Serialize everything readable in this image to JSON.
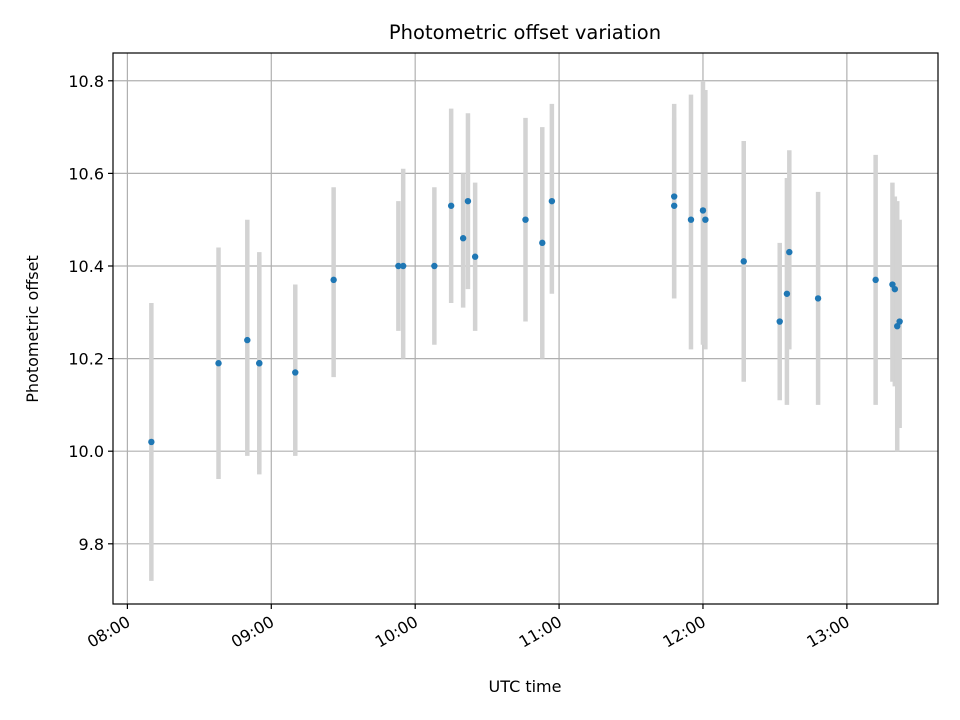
{
  "chart_data": {
    "type": "scatter",
    "title": "Photometric offset variation",
    "xlabel": "UTC time",
    "ylabel": "Photometric offset",
    "x_ticks": [
      "08:00",
      "09:00",
      "10:00",
      "11:00",
      "12:00",
      "13:00"
    ],
    "y_ticks": [
      9.8,
      10.0,
      10.2,
      10.4,
      10.6,
      10.8
    ],
    "xlim": [
      "07:54",
      "13:38"
    ],
    "ylim": [
      9.67,
      10.86
    ],
    "grid": true,
    "colors": {
      "marker": "#1f77b4",
      "errorbar": "#d3d3d3",
      "grid": "#b0b0b0"
    },
    "series": [
      {
        "points": [
          {
            "t": "08:10",
            "y": 10.02,
            "lo": 9.72,
            "hi": 10.32
          },
          {
            "t": "08:38",
            "y": 10.19,
            "lo": 9.94,
            "hi": 10.44
          },
          {
            "t": "08:50",
            "y": 10.24,
            "lo": 9.99,
            "hi": 10.5
          },
          {
            "t": "08:55",
            "y": 10.19,
            "lo": 9.95,
            "hi": 10.43
          },
          {
            "t": "08:55",
            "y": 10.19,
            "lo": 9.96,
            "hi": 10.42
          },
          {
            "t": "09:10",
            "y": 10.17,
            "lo": 9.99,
            "hi": 10.36
          },
          {
            "t": "09:26",
            "y": 10.37,
            "lo": 10.16,
            "hi": 10.57
          },
          {
            "t": "09:53",
            "y": 10.4,
            "lo": 10.26,
            "hi": 10.54
          },
          {
            "t": "09:55",
            "y": 10.4,
            "lo": 10.2,
            "hi": 10.61
          },
          {
            "t": "10:08",
            "y": 10.4,
            "lo": 10.23,
            "hi": 10.57
          },
          {
            "t": "10:15",
            "y": 10.53,
            "lo": 10.32,
            "hi": 10.74
          },
          {
            "t": "10:20",
            "y": 10.46,
            "lo": 10.31,
            "hi": 10.6
          },
          {
            "t": "10:22",
            "y": 10.54,
            "lo": 10.35,
            "hi": 10.73
          },
          {
            "t": "10:25",
            "y": 10.42,
            "lo": 10.26,
            "hi": 10.58
          },
          {
            "t": "10:46",
            "y": 10.5,
            "lo": 10.28,
            "hi": 10.72
          },
          {
            "t": "10:53",
            "y": 10.45,
            "lo": 10.2,
            "hi": 10.7
          },
          {
            "t": "10:57",
            "y": 10.54,
            "lo": 10.34,
            "hi": 10.75
          },
          {
            "t": "11:48",
            "y": 10.55,
            "lo": 10.33,
            "hi": 10.75
          },
          {
            "t": "11:48",
            "y": 10.53,
            "lo": 10.33,
            "hi": 10.72
          },
          {
            "t": "11:55",
            "y": 10.5,
            "lo": 10.22,
            "hi": 10.77
          },
          {
            "t": "12:00",
            "y": 10.52,
            "lo": 10.23,
            "hi": 10.8
          },
          {
            "t": "12:01",
            "y": 10.5,
            "lo": 10.22,
            "hi": 10.78
          },
          {
            "t": "12:17",
            "y": 10.41,
            "lo": 10.15,
            "hi": 10.67
          },
          {
            "t": "12:32",
            "y": 10.28,
            "lo": 10.11,
            "hi": 10.45
          },
          {
            "t": "12:35",
            "y": 10.34,
            "lo": 10.1,
            "hi": 10.59
          },
          {
            "t": "12:36",
            "y": 10.43,
            "lo": 10.22,
            "hi": 10.65
          },
          {
            "t": "12:48",
            "y": 10.33,
            "lo": 10.1,
            "hi": 10.56
          },
          {
            "t": "13:12",
            "y": 10.37,
            "lo": 10.1,
            "hi": 10.64
          },
          {
            "t": "13:19",
            "y": 10.36,
            "lo": 10.15,
            "hi": 10.58
          },
          {
            "t": "13:20",
            "y": 10.35,
            "lo": 10.14,
            "hi": 10.55
          },
          {
            "t": "13:21",
            "y": 10.27,
            "lo": 10.0,
            "hi": 10.54
          },
          {
            "t": "13:22",
            "y": 10.28,
            "lo": 10.05,
            "hi": 10.5
          }
        ]
      }
    ]
  }
}
